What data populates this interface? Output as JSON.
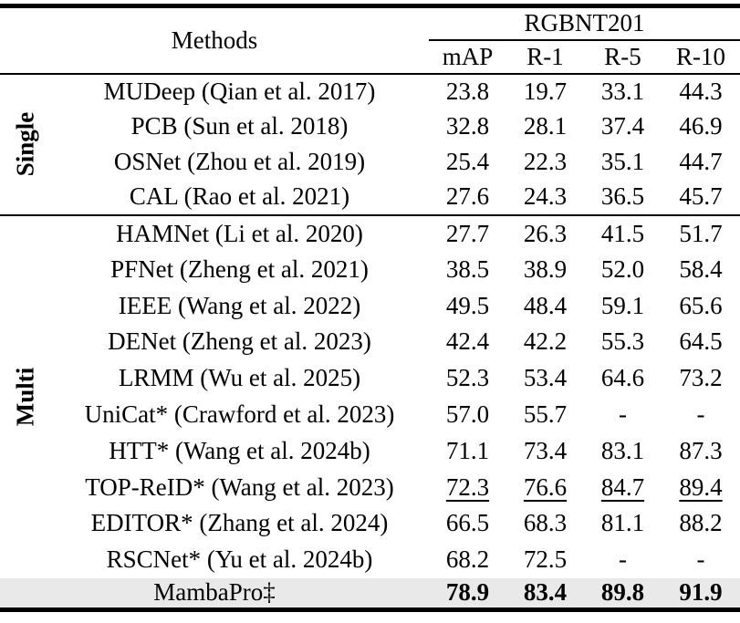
{
  "table": {
    "header": {
      "methods": "Methods",
      "dataset": "RGBNT201",
      "metrics": [
        "mAP",
        "R-1",
        "R-5",
        "R-10"
      ]
    },
    "groups": [
      {
        "label": "Single",
        "rows": [
          {
            "method": "MUDeep (Qian et al. 2017)",
            "values": [
              "23.8",
              "19.7",
              "33.1",
              "44.3"
            ]
          },
          {
            "method": "PCB (Sun et al. 2018)",
            "values": [
              "32.8",
              "28.1",
              "37.4",
              "46.9"
            ]
          },
          {
            "method": "OSNet (Zhou et al. 2019)",
            "values": [
              "25.4",
              "22.3",
              "35.1",
              "44.7"
            ]
          },
          {
            "method": "CAL (Rao et al. 2021)",
            "values": [
              "27.6",
              "24.3",
              "36.5",
              "45.7"
            ]
          }
        ]
      },
      {
        "label": "Multi",
        "rows": [
          {
            "method": "HAMNet (Li et al. 2020)",
            "values": [
              "27.7",
              "26.3",
              "41.5",
              "51.7"
            ]
          },
          {
            "method": "PFNet (Zheng et al. 2021)",
            "values": [
              "38.5",
              "38.9",
              "52.0",
              "58.4"
            ]
          },
          {
            "method": "IEEE (Wang et al. 2022)",
            "values": [
              "49.5",
              "48.4",
              "59.1",
              "65.6"
            ]
          },
          {
            "method": "DENet (Zheng et al. 2023)",
            "values": [
              "42.4",
              "42.2",
              "55.3",
              "64.5"
            ]
          },
          {
            "method": "LRMM (Wu et al. 2025)",
            "values": [
              "52.3",
              "53.4",
              "64.6",
              "73.2"
            ]
          },
          {
            "method": "UniCat* (Crawford et al. 2023)",
            "values": [
              "57.0",
              "55.7",
              "-",
              "-"
            ]
          },
          {
            "method": "HTT* (Wang et al. 2024b)",
            "values": [
              "71.1",
              "73.4",
              "83.1",
              "87.3"
            ]
          },
          {
            "method": "TOP-ReID* (Wang et al. 2023)",
            "values": [
              "72.3",
              "76.6",
              "84.7",
              "89.4"
            ]
          },
          {
            "method": "EDITOR* (Zhang et al. 2024)",
            "values": [
              "66.5",
              "68.3",
              "81.1",
              "88.2"
            ]
          },
          {
            "method": "RSCNet* (Yu et al. 2024b)",
            "values": [
              "68.2",
              "72.5",
              "-",
              "-"
            ]
          }
        ]
      }
    ],
    "highlight": {
      "method": "MambaPro‡",
      "values": [
        "78.9",
        "83.4",
        "89.8",
        "91.9"
      ]
    }
  },
  "colors": {
    "highlight_bg": "#e9e9e9",
    "rule": "#000000",
    "text": "#000000",
    "background": "#ffffff"
  }
}
